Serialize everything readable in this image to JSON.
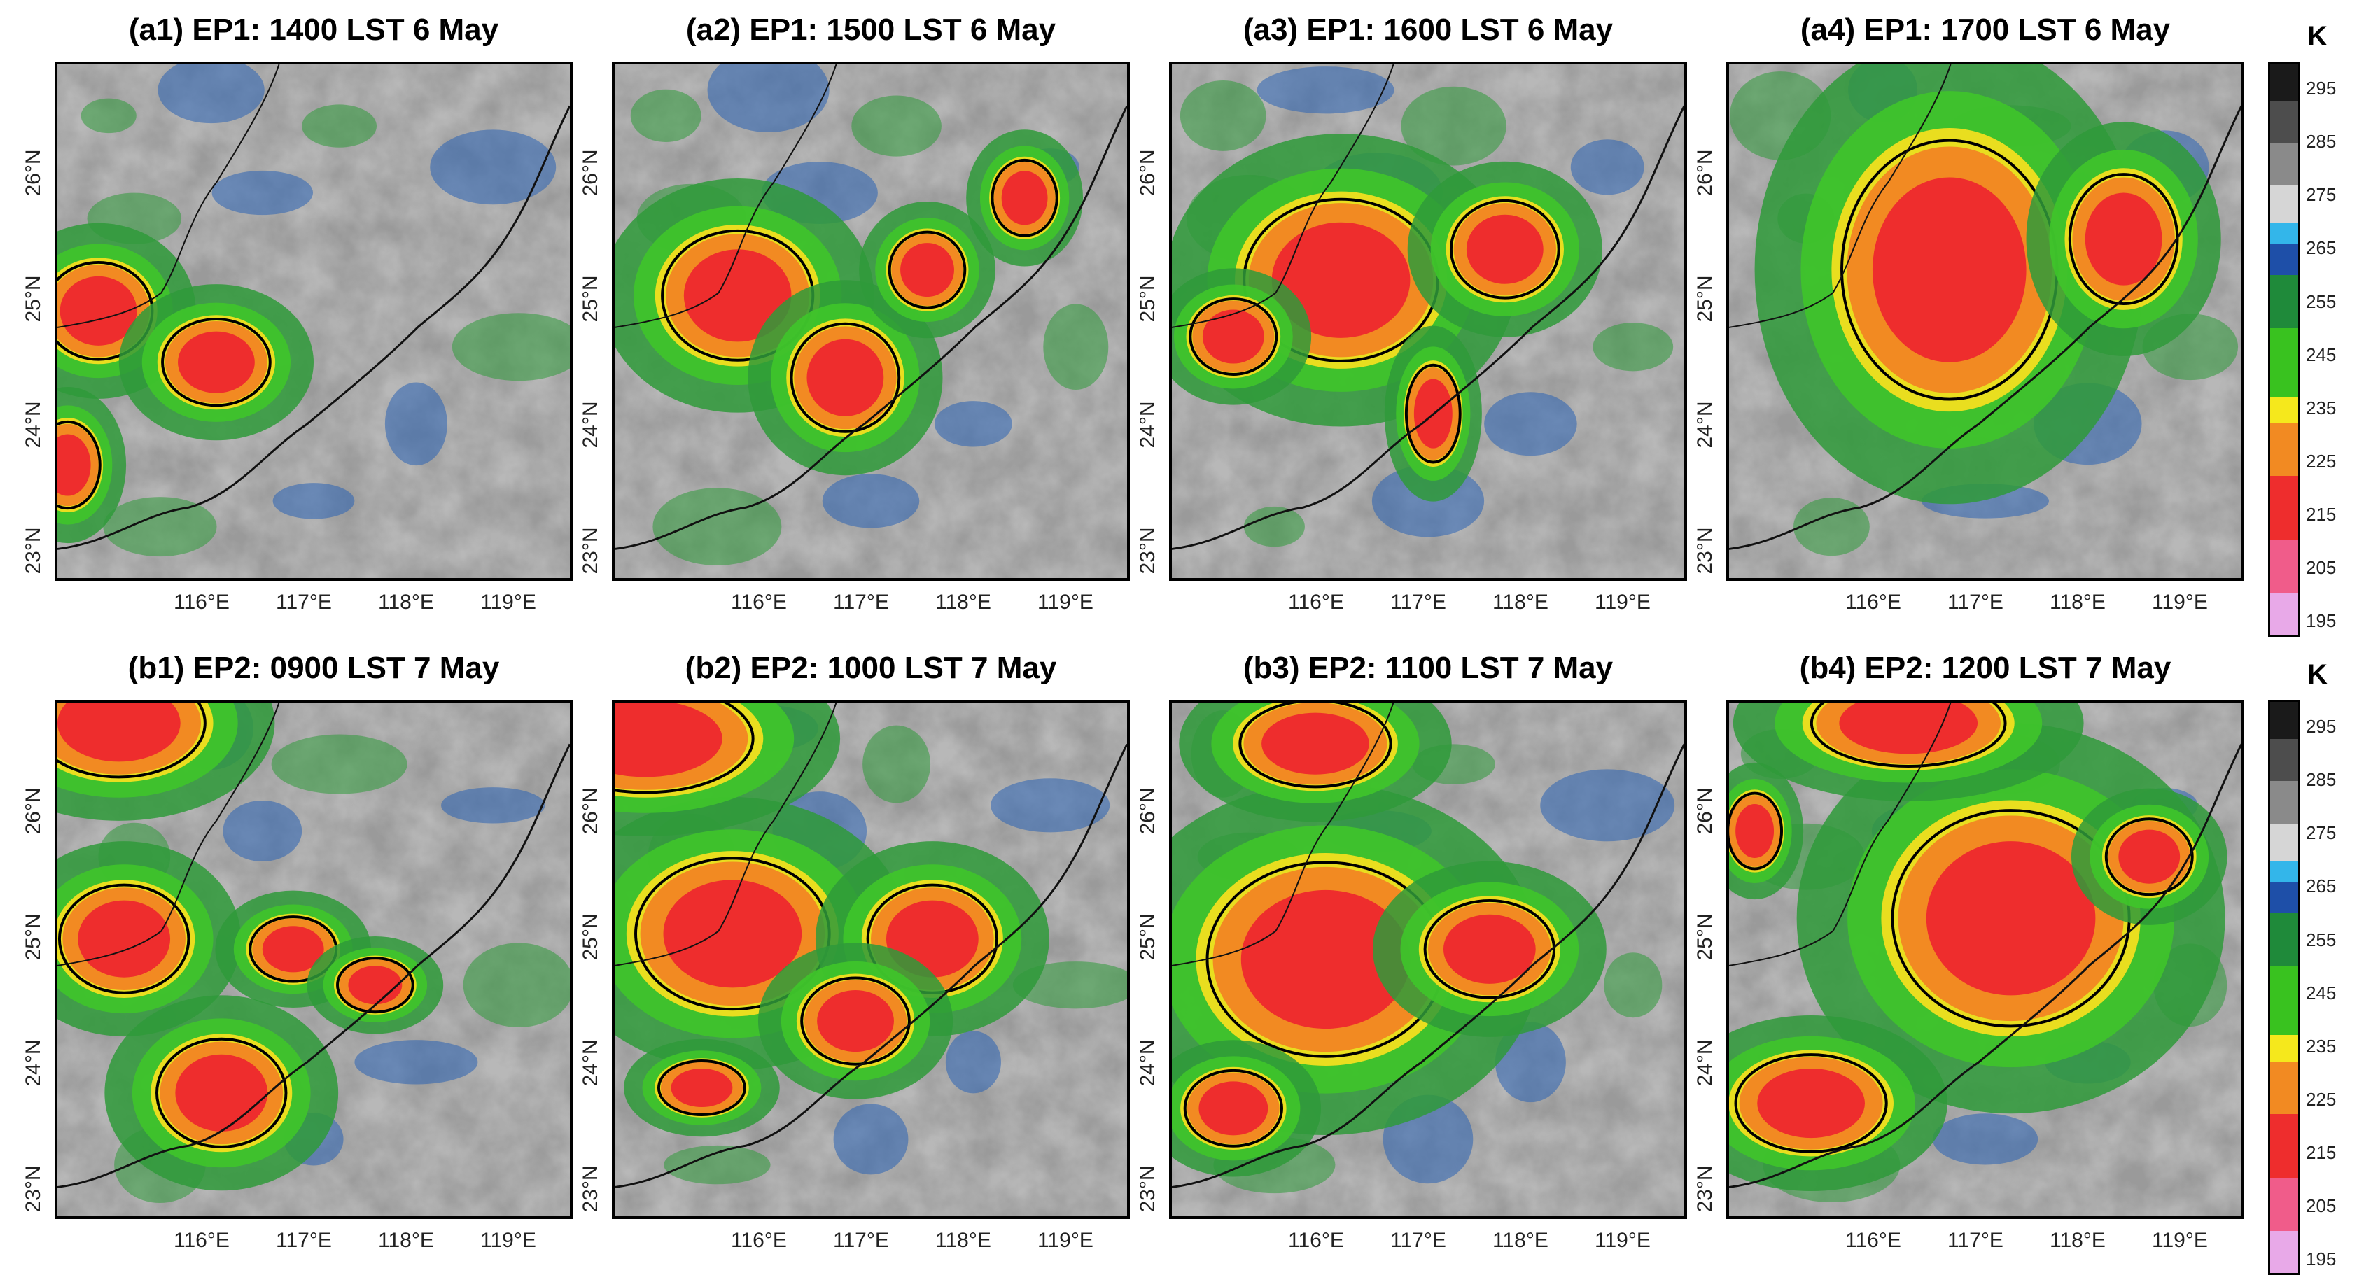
{
  "colorbar": {
    "unit": "K",
    "ticks": [
      "295",
      "285",
      "275",
      "265",
      "255",
      "245",
      "235",
      "225",
      "215",
      "205",
      "195"
    ],
    "segments": [
      {
        "from": 300,
        "to": 293,
        "color": "#1a1a1a"
      },
      {
        "from": 293,
        "to": 285,
        "color": "#4d4d4d"
      },
      {
        "from": 285,
        "to": 277,
        "color": "#8a8a8a"
      },
      {
        "from": 277,
        "to": 270,
        "color": "#d6d6d6"
      },
      {
        "from": 270,
        "to": 266,
        "color": "#33b6ea"
      },
      {
        "from": 266,
        "to": 260,
        "color": "#1e4fa8"
      },
      {
        "from": 260,
        "to": 250,
        "color": "#1f8a3a"
      },
      {
        "from": 250,
        "to": 237,
        "color": "#39c21f"
      },
      {
        "from": 237,
        "to": 232,
        "color": "#f5e81c"
      },
      {
        "from": 232,
        "to": 222,
        "color": "#f28a22"
      },
      {
        "from": 222,
        "to": 210,
        "color": "#ee2d2d"
      },
      {
        "from": 210,
        "to": 200,
        "color": "#f05c8a"
      },
      {
        "from": 200,
        "to": 192,
        "color": "#e8a9e8"
      }
    ]
  },
  "axes": {
    "lat_labels": [
      "26°N",
      "25°N",
      "24°N",
      "23°N"
    ],
    "lon_labels": [
      "116°E",
      "117°E",
      "118°E",
      "119°E"
    ]
  },
  "panels": [
    {
      "title": "(a1) EP1: 1400 LST 6 May"
    },
    {
      "title": "(a2) EP1: 1500 LST 6 May"
    },
    {
      "title": "(a3) EP1: 1600 LST 6 May"
    },
    {
      "title": "(a4) EP1: 1700 LST 6 May"
    },
    {
      "title": "(b1) EP2: 0900 LST 7 May"
    },
    {
      "title": "(b2) EP2: 1000 LST 7 May"
    },
    {
      "title": "(b3) EP2: 1100 LST 7 May"
    },
    {
      "title": "(b4) EP2: 1200 LST 7 May"
    }
  ]
}
